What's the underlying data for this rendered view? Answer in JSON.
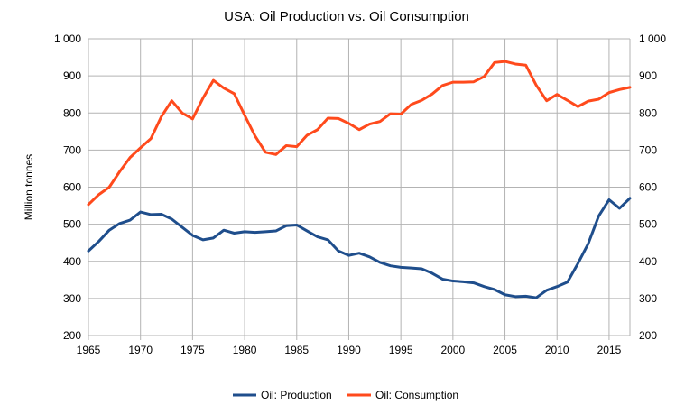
{
  "chart_data": {
    "type": "line",
    "title": "USA: Oil Production vs. Oil Consumption",
    "xlabel": "",
    "ylabel": "Million tonnes",
    "xlim": [
      1965,
      2017
    ],
    "ylim": [
      200,
      1000
    ],
    "x_ticks": [
      "1965",
      "1970",
      "1975",
      "1980",
      "1985",
      "1990",
      "1995",
      "2000",
      "2005",
      "2010",
      "2015"
    ],
    "y_ticks": [
      "200",
      "300",
      "400",
      "500",
      "600",
      "700",
      "800",
      "900",
      "1 000"
    ],
    "y_ticks_right": [
      "200",
      "300",
      "400",
      "500",
      "600",
      "700",
      "800",
      "900",
      "1 000"
    ],
    "grid": true,
    "legend_position": "bottom",
    "x": [
      1965,
      1966,
      1967,
      1968,
      1969,
      1970,
      1971,
      1972,
      1973,
      1974,
      1975,
      1976,
      1977,
      1978,
      1979,
      1980,
      1981,
      1982,
      1983,
      1984,
      1985,
      1986,
      1987,
      1988,
      1989,
      1990,
      1991,
      1992,
      1993,
      1994,
      1995,
      1996,
      1997,
      1998,
      1999,
      2000,
      2001,
      2002,
      2003,
      2004,
      2005,
      2006,
      2007,
      2008,
      2009,
      2010,
      2011,
      2012,
      2013,
      2014,
      2015,
      2016,
      2017
    ],
    "series": [
      {
        "name": "Oil: Production",
        "color": "#1f4e8c",
        "values": [
          428,
          454,
          484,
          502,
          511,
          533,
          526,
          527,
          514,
          492,
          470,
          458,
          463,
          484,
          476,
          480,
          478,
          480,
          482,
          496,
          498,
          482,
          466,
          458,
          428,
          416,
          422,
          412,
          397,
          388,
          384,
          382,
          380,
          368,
          352,
          347,
          345,
          342,
          332,
          324,
          310,
          305,
          306,
          302,
          322,
          332,
          344,
          394,
          448,
          522,
          566,
          543,
          570
        ]
      },
      {
        "name": "Oil: Consumption",
        "color": "#ff4a1c",
        "values": [
          553,
          580,
          600,
          642,
          680,
          706,
          731,
          790,
          833,
          800,
          784,
          840,
          888,
          867,
          852,
          794,
          738,
          694,
          688,
          712,
          709,
          740,
          755,
          786,
          785,
          772,
          755,
          770,
          777,
          798,
          797,
          823,
          834,
          851,
          874,
          883,
          883,
          884,
          898,
          936,
          939,
          932,
          929,
          875,
          833,
          850,
          834,
          817,
          832,
          837,
          855,
          863,
          869
        ]
      }
    ]
  }
}
